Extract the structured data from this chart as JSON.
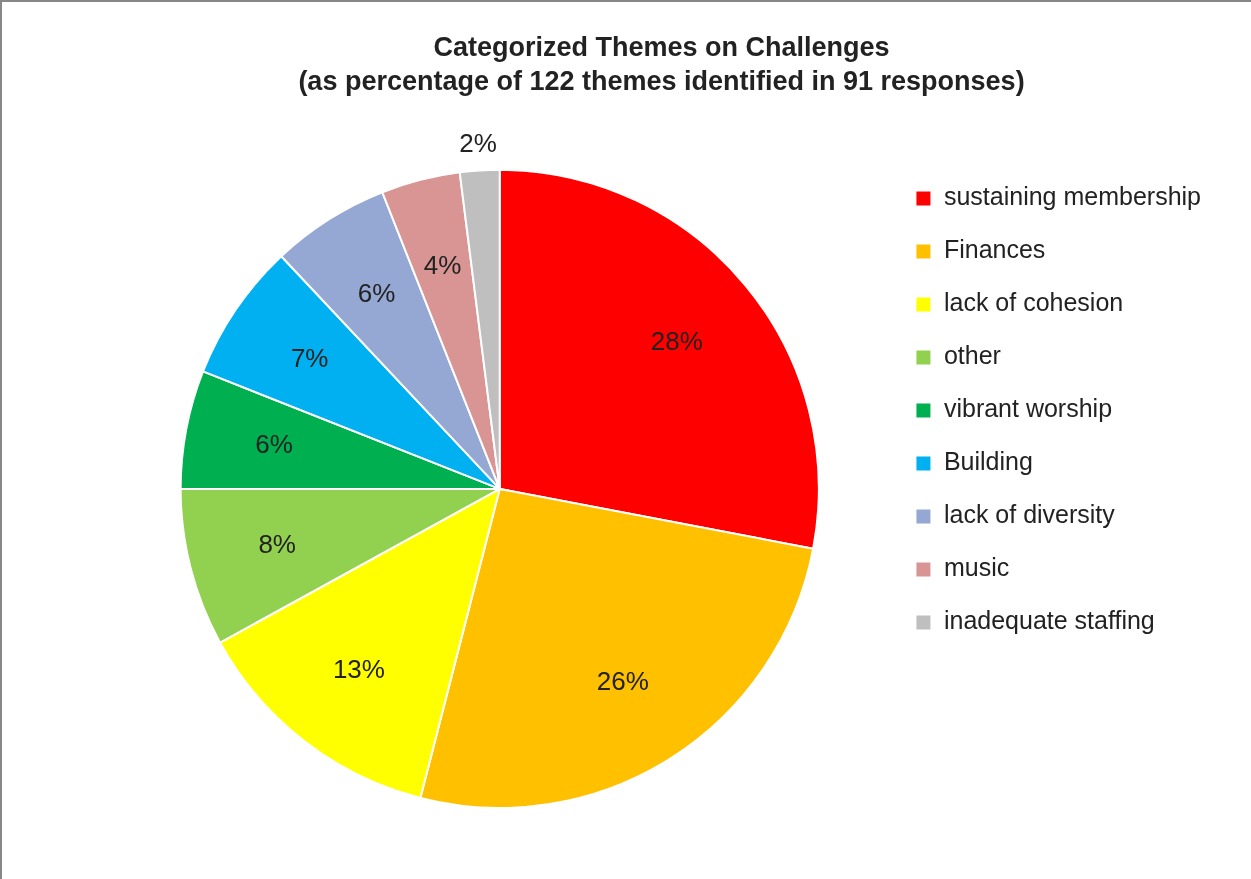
{
  "chart_data": {
    "type": "pie",
    "title": "Categorized Themes on Challenges",
    "subtitle": "(as percentage of 122 themes identified in 91 responses)",
    "categories": [
      "sustaining membership",
      "Finances",
      "lack of cohesion",
      "other",
      "vibrant worship",
      "Building",
      "lack of diversity",
      "music",
      "inadequate staffing"
    ],
    "values": [
      28,
      26,
      13,
      8,
      6,
      7,
      6,
      4,
      2
    ],
    "colors": [
      "#ff0000",
      "#ffc000",
      "#ffff00",
      "#92d050",
      "#00b050",
      "#00b0f0",
      "#95a8d3",
      "#d99594",
      "#bfbfbf"
    ],
    "value_labels": [
      "28%",
      "26%",
      "13%",
      "8%",
      "6%",
      "7%",
      "6%",
      "4%",
      "2%"
    ],
    "legend": "right"
  }
}
